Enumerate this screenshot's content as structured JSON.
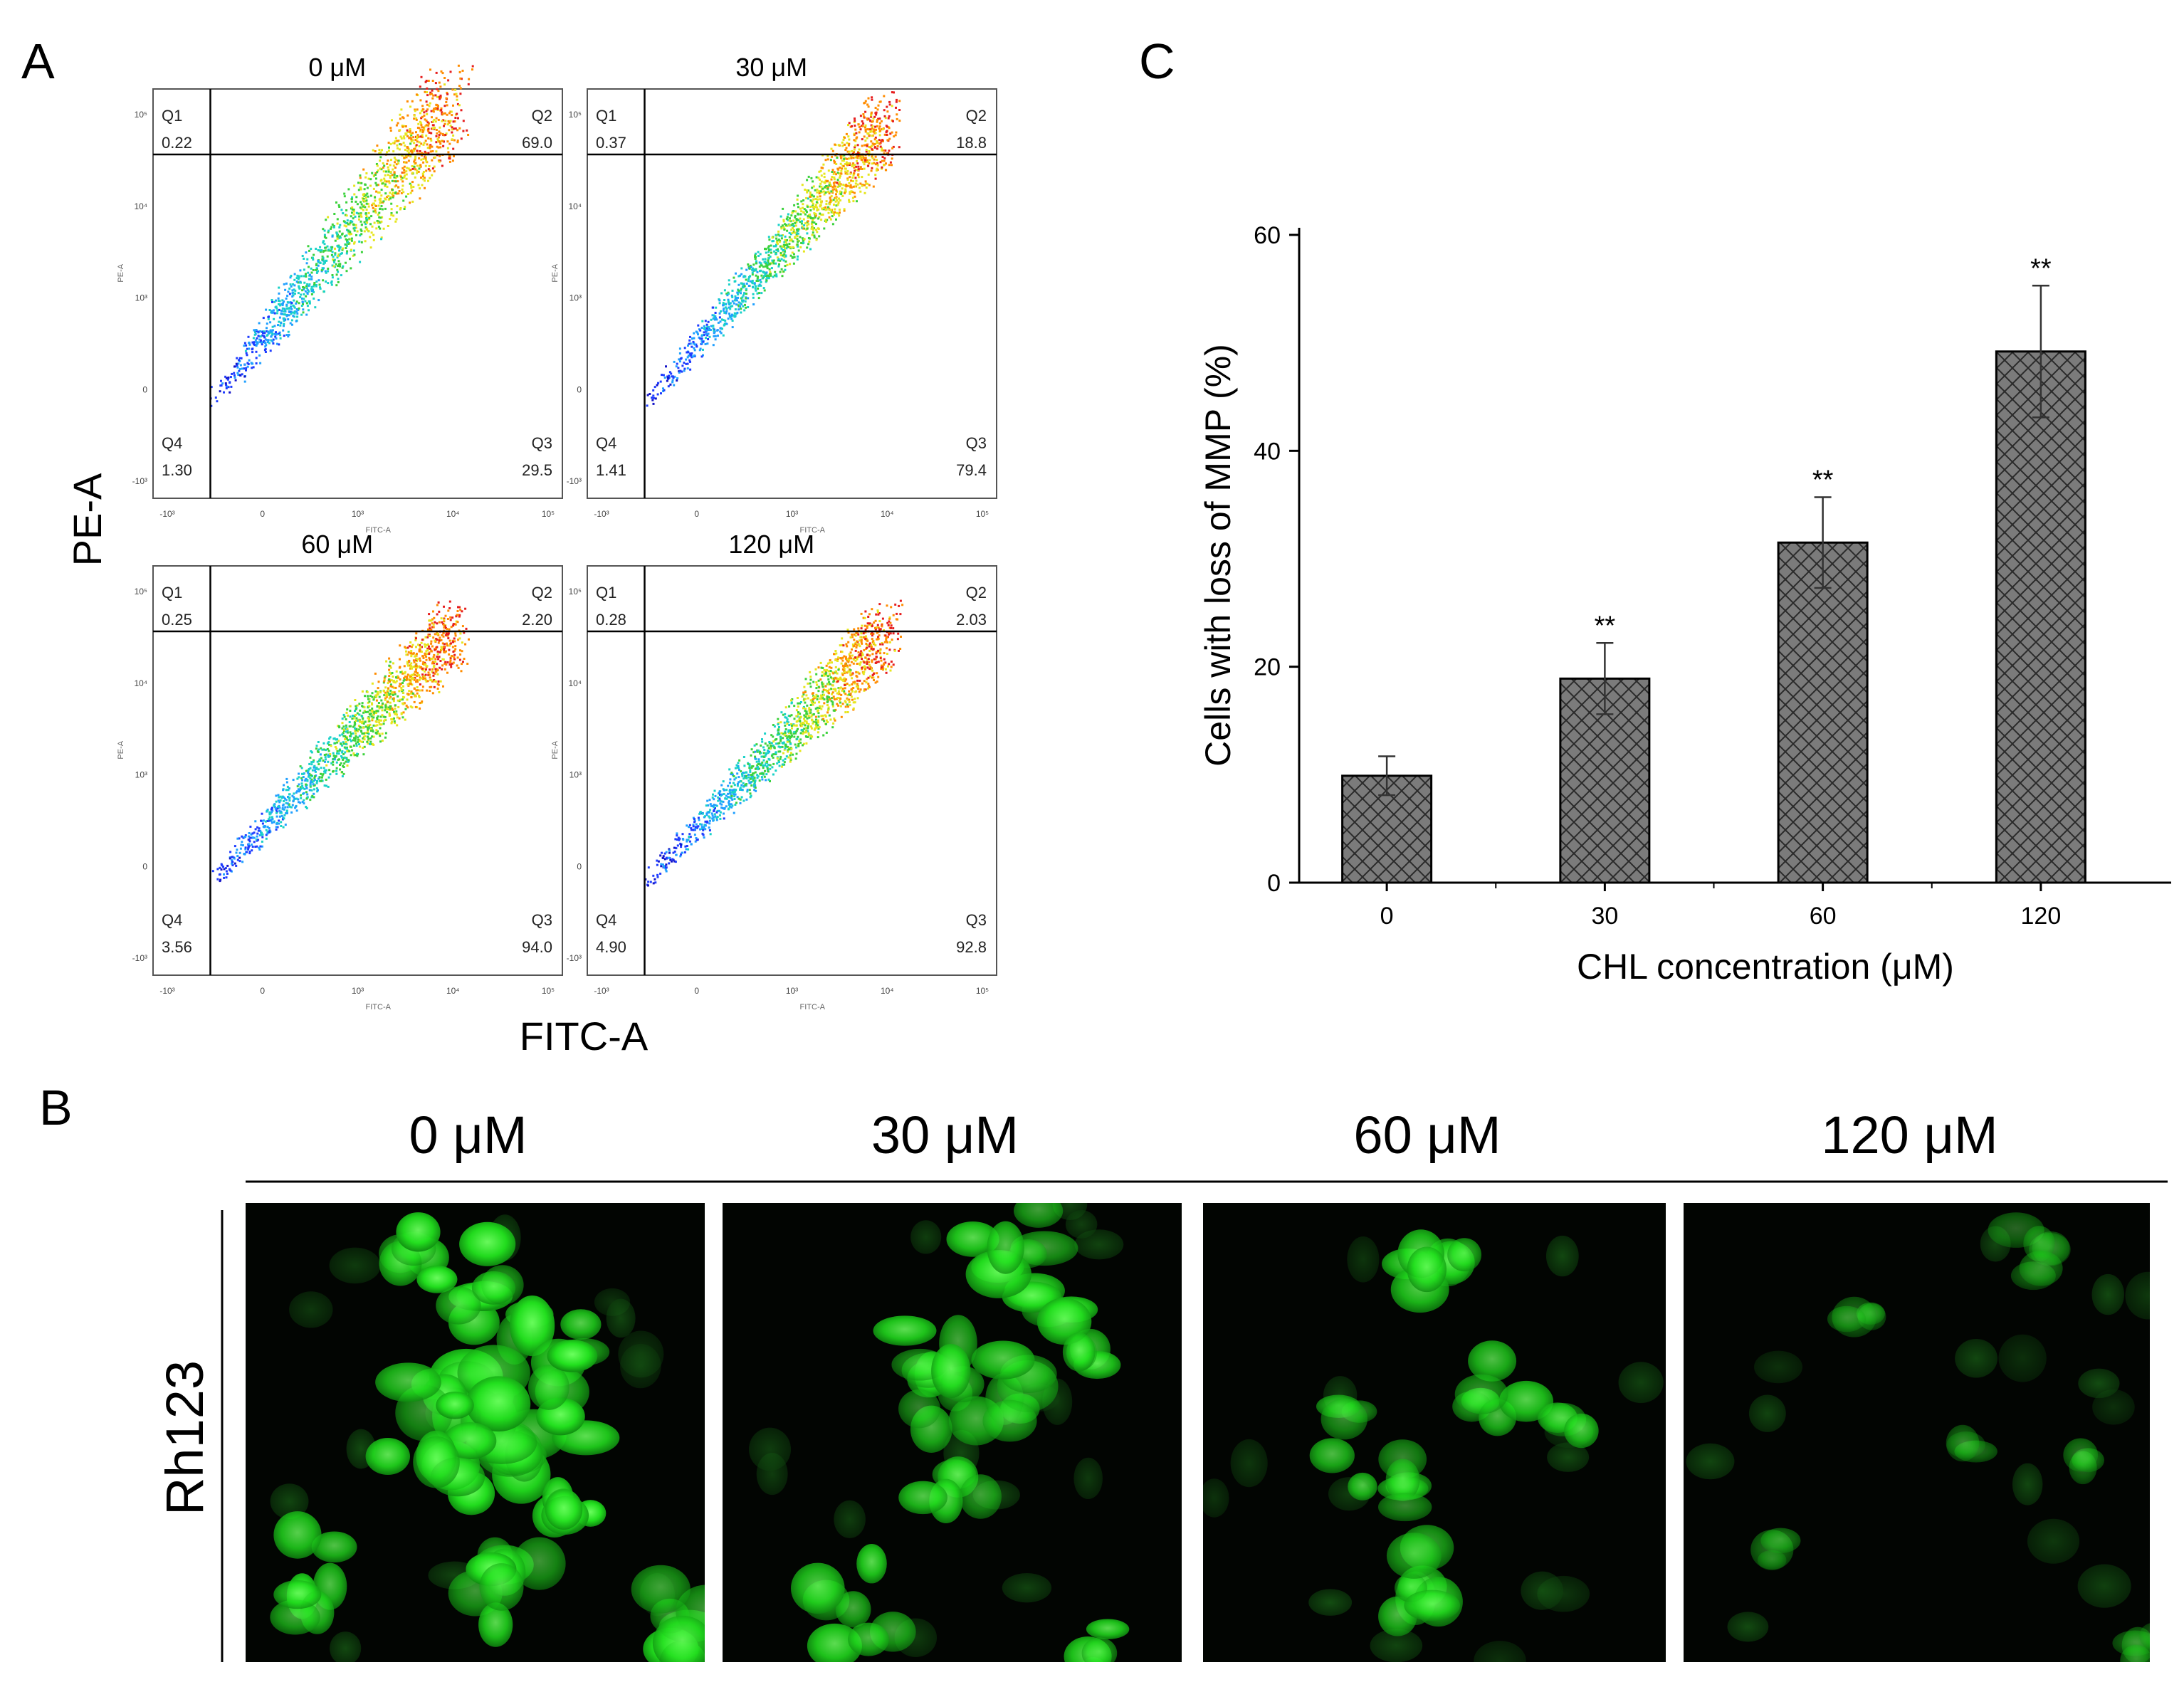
{
  "panel_labels": {
    "a": "A",
    "b": "B",
    "c": "C"
  },
  "panel_a": {
    "y_axis_title": "PE-A",
    "x_axis_title": "FITC-A",
    "plots": [
      {
        "title": "0 μM",
        "q1": "0.22",
        "q2": "69.0",
        "q3": "29.5",
        "q4": "1.30",
        "density": "high_upper"
      },
      {
        "title": "30 μM",
        "q1": "0.37",
        "q2": "18.8",
        "q3": "79.4",
        "q4": "1.41",
        "density": "mid"
      },
      {
        "title": "60 μM",
        "q1": "0.25",
        "q2": "2.20",
        "q3": "94.0",
        "q4": "3.56",
        "density": "low"
      },
      {
        "title": "120 μM",
        "q1": "0.28",
        "q2": "2.03",
        "q3": "92.8",
        "q4": "4.90",
        "density": "low"
      }
    ],
    "quadrant_names": {
      "q1": "Q1",
      "q2": "Q2",
      "q3": "Q3",
      "q4": "Q4"
    },
    "mini_axis_label_x": "FITC-A",
    "mini_axis_label_y": "PE-A",
    "tick_labels_x": [
      "-10³",
      "0",
      "10³",
      "10⁴",
      "10⁵"
    ],
    "tick_labels_y": [
      "-10³",
      "0",
      "10³",
      "10⁴",
      "10⁵"
    ]
  },
  "panel_b": {
    "row_label": "Rh123",
    "columns": [
      "0 μM",
      "30 μM",
      "60 μM",
      "120 μM"
    ],
    "fluorescence_color": "#22e01e"
  },
  "chart_data": {
    "type": "bar",
    "categories": [
      "0",
      "30",
      "60",
      "120"
    ],
    "values": [
      9.9,
      18.9,
      31.5,
      49.2
    ],
    "errors": [
      1.8,
      3.3,
      4.2,
      6.1
    ],
    "significance": [
      "",
      "**",
      "**",
      "**"
    ],
    "xlabel": "CHL concentration (μM)",
    "ylabel": "Cells with loss of MMP (%)",
    "ylim": [
      0,
      60
    ],
    "yticks": [
      0,
      20,
      40,
      60
    ],
    "bar_color": "#7b7b7b",
    "bar_pattern": "crosshatch",
    "grid": false
  }
}
